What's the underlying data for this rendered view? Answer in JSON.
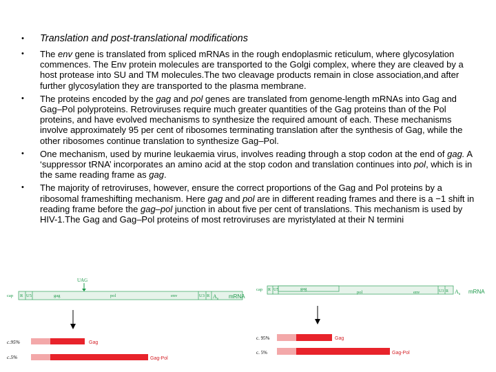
{
  "heading": "Translation and post-translational modifications",
  "paragraphs": [
    [
      "The ",
      {
        "i": "env"
      },
      " gene is translated from spliced mRNAs in the rough endoplasmic reticulum, where glycosylation commences. The Env protein molecules are transported to the Golgi complex, where they are cleaved by a host protease into SU and TM molecules.The two cleavage products remain in close association,and after further glycosylation they are transported to the plasma membrane."
    ],
    [
      "The proteins encoded by the ",
      {
        "i": "gag"
      },
      " and ",
      {
        "i": "pol"
      },
      " genes are translated from genome-length mRNAs into Gag and Gag–Pol polyproteins. Retroviruses require much greater quantities of the Gag proteins than of the Pol proteins, and have evolved mechanisms to synthesize the required amount of each. These mechanisms involve approximately 95 per cent of ribosomes terminating translation after the synthesis of Gag, while the other ribosomes continue translation to synthesize Gag–Pol."
    ],
    [
      "One mechanism, used by murine leukaemia virus, involves reading through a stop codon at the end of ",
      {
        "i": "gag."
      },
      " A ‘suppressor tRNA’ incorporates an amino acid at the stop codon and translation continues into ",
      {
        "i": "pol"
      },
      ", which is in the same reading frame as ",
      {
        "i": "gag"
      },
      "."
    ],
    [
      "The majority of retroviruses, however, ensure the correct proportions of the Gag and Pol proteins by a ribosomal frameshifting mechanism. Here ",
      {
        "i": "gag"
      },
      " and ",
      {
        "i": "pol"
      },
      " are in different reading frames and there is a −1 shift in reading frame before the ",
      {
        "i": "gag–pol"
      },
      " junction in about five per cent of translations. This mechanism is used by HIV-1.The Gag and Gag–Pol proteins of most retroviruses are myristylated at their N termini"
    ]
  ],
  "diagram_left": {
    "stop_label": "UAG",
    "segments": {
      "cap": "cap",
      "r": "R",
      "u5": "U5",
      "gag": "gag",
      "pol": "pol",
      "env": "env",
      "u3": "U3",
      "r2": "R",
      "an": "A",
      "an_sub": "n"
    },
    "mrna_label": "mRNA",
    "rows": [
      {
        "pct": "c.95%",
        "protein": "Gag"
      },
      {
        "pct": "c.5%",
        "protein": "Gag-Pol"
      }
    ]
  },
  "diagram_right": {
    "segments": {
      "cap": "cap",
      "r": "R",
      "u5": "U5",
      "gag": "gag",
      "pol": "pol",
      "env": "env",
      "u3": "U3",
      "r2": "R",
      "an": "A",
      "an_sub": "n"
    },
    "mrna_label": "mRNA",
    "rows": [
      {
        "pct": "c. 95%",
        "protein": "Gag"
      },
      {
        "pct": "c. 5%",
        "protein": "Gag-Pol"
      }
    ]
  },
  "colors": {
    "rna_bar": "#e6f3ea",
    "rna_stroke": "#2ea25a",
    "protein": "#e8232b",
    "protein_light": "#f3a8a9",
    "label_green": "#1a9848",
    "label_red": "#d42127"
  }
}
